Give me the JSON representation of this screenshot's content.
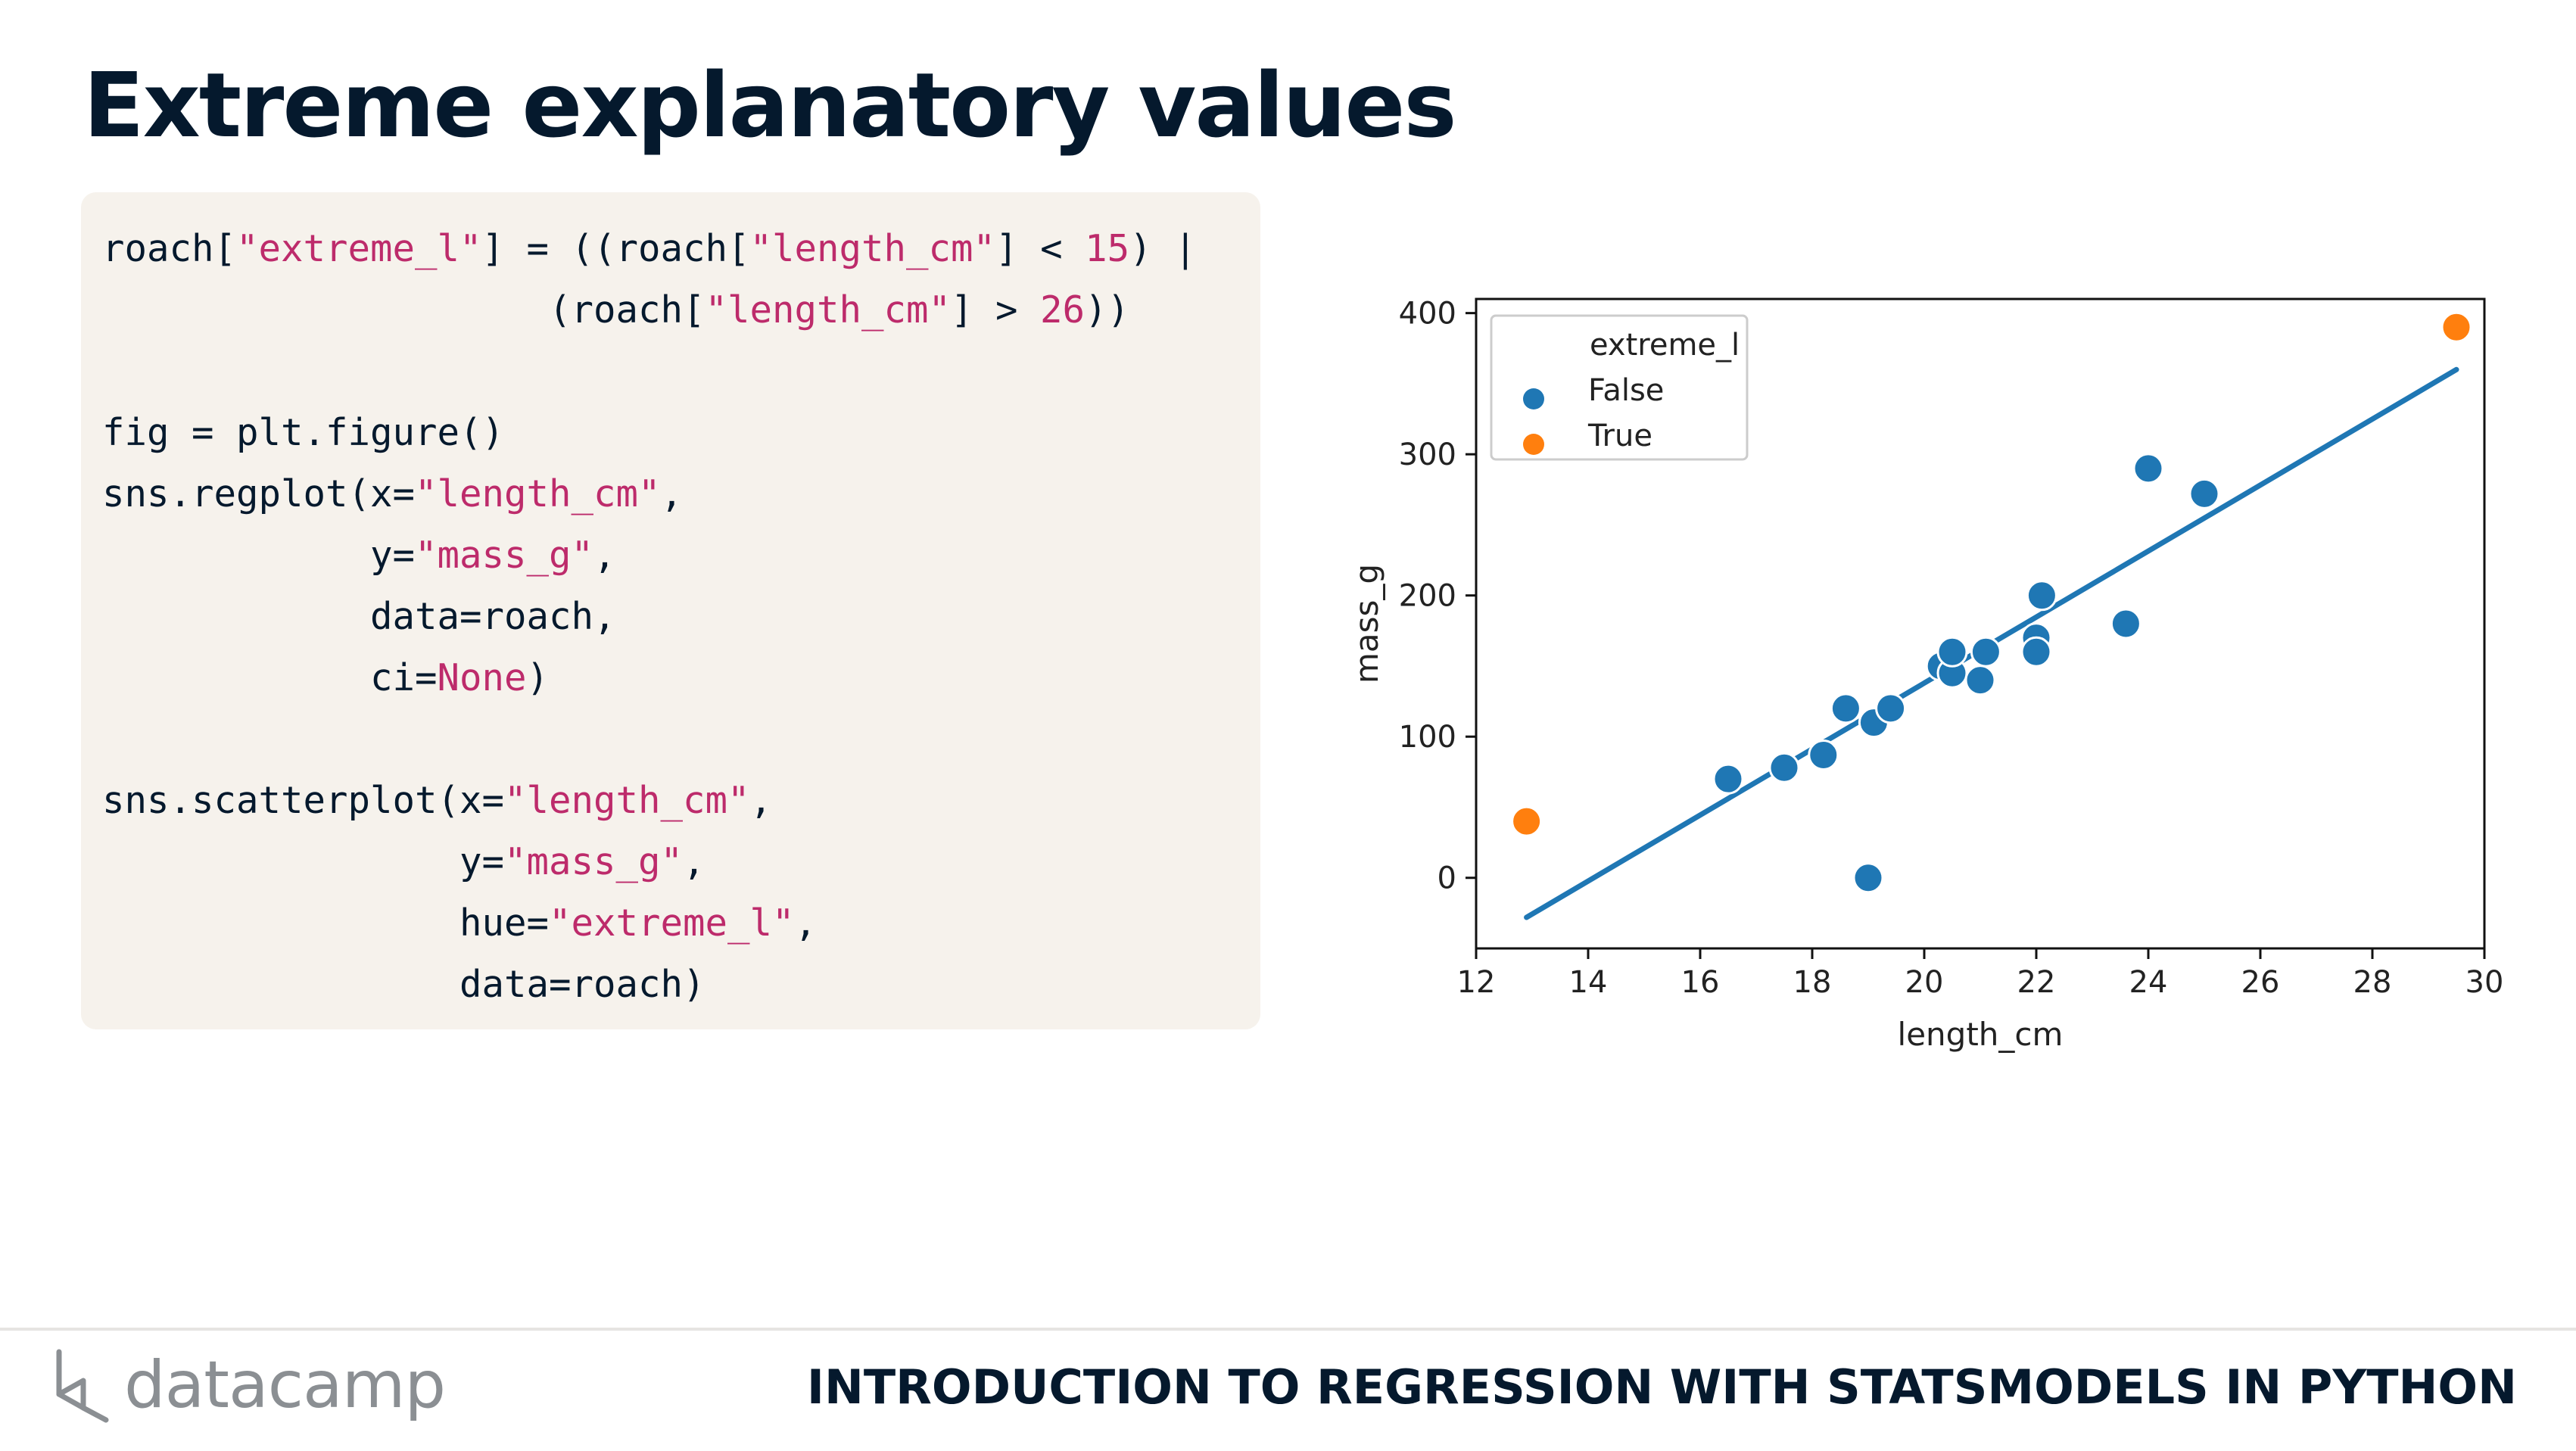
{
  "slide": {
    "title": "Extreme explanatory values",
    "footer_brand": "datacamp",
    "footer_course": "INTRODUCTION TO REGRESSION WITH STATSMODELS IN PYTHON"
  },
  "code": {
    "lines": [
      [
        {
          "t": "roach["
        },
        {
          "t": "\"extreme_l\"",
          "c": "s"
        },
        {
          "t": "] = ((roach["
        },
        {
          "t": "\"length_cm\"",
          "c": "s"
        },
        {
          "t": "] < "
        },
        {
          "t": "15",
          "c": "n"
        },
        {
          "t": ") |"
        }
      ],
      [
        {
          "t": "                    (roach["
        },
        {
          "t": "\"length_cm\"",
          "c": "s"
        },
        {
          "t": "] > "
        },
        {
          "t": "26",
          "c": "n"
        },
        {
          "t": "))"
        }
      ],
      [
        {
          "t": ""
        }
      ],
      [
        {
          "t": "fig = plt.figure()"
        }
      ],
      [
        {
          "t": "sns.regplot(x="
        },
        {
          "t": "\"length_cm\"",
          "c": "s"
        },
        {
          "t": ","
        }
      ],
      [
        {
          "t": "            y="
        },
        {
          "t": "\"mass_g\"",
          "c": "s"
        },
        {
          "t": ","
        }
      ],
      [
        {
          "t": "            data=roach,"
        }
      ],
      [
        {
          "t": "            ci="
        },
        {
          "t": "None",
          "c": "n"
        },
        {
          "t": ")"
        }
      ],
      [
        {
          "t": ""
        }
      ],
      [
        {
          "t": "sns.scatterplot(x="
        },
        {
          "t": "\"length_cm\"",
          "c": "s"
        },
        {
          "t": ","
        }
      ],
      [
        {
          "t": "                y="
        },
        {
          "t": "\"mass_g\"",
          "c": "s"
        },
        {
          "t": ","
        }
      ],
      [
        {
          "t": "                hue="
        },
        {
          "t": "\"extreme_l\"",
          "c": "s"
        },
        {
          "t": ","
        }
      ],
      [
        {
          "t": "                data=roach)"
        }
      ]
    ]
  },
  "chart_data": {
    "type": "scatter",
    "title": "",
    "xlabel": "length_cm",
    "ylabel": "mass_g",
    "xlim": [
      12,
      30
    ],
    "ylim": [
      -50,
      410
    ],
    "xticks": [
      "12",
      "14",
      "16",
      "18",
      "20",
      "22",
      "24",
      "26",
      "28",
      "30"
    ],
    "yticks": [
      "0",
      "100",
      "200",
      "300",
      "400"
    ],
    "legend": {
      "title": "extreme_l",
      "position": "top-left"
    },
    "series": [
      {
        "name": "False",
        "color": "#1f77b4",
        "points": [
          [
            16.5,
            70
          ],
          [
            17.5,
            78
          ],
          [
            18.2,
            87
          ],
          [
            18.6,
            120
          ],
          [
            19.0,
            0
          ],
          [
            19.1,
            110
          ],
          [
            19.4,
            120
          ],
          [
            20.3,
            150
          ],
          [
            20.5,
            145
          ],
          [
            20.5,
            160
          ],
          [
            21.0,
            140
          ],
          [
            21.1,
            160
          ],
          [
            22.0,
            170
          ],
          [
            22.0,
            160
          ],
          [
            22.1,
            200
          ],
          [
            23.6,
            180
          ],
          [
            24.0,
            290
          ],
          [
            25.0,
            272
          ]
        ]
      },
      {
        "name": "True",
        "color": "#ff7f0e",
        "points": [
          [
            12.9,
            40
          ],
          [
            29.5,
            390
          ]
        ]
      }
    ],
    "regression_line": {
      "x": [
        12.9,
        29.5
      ],
      "y": [
        -28,
        360
      ],
      "color": "#1f77b4"
    }
  }
}
